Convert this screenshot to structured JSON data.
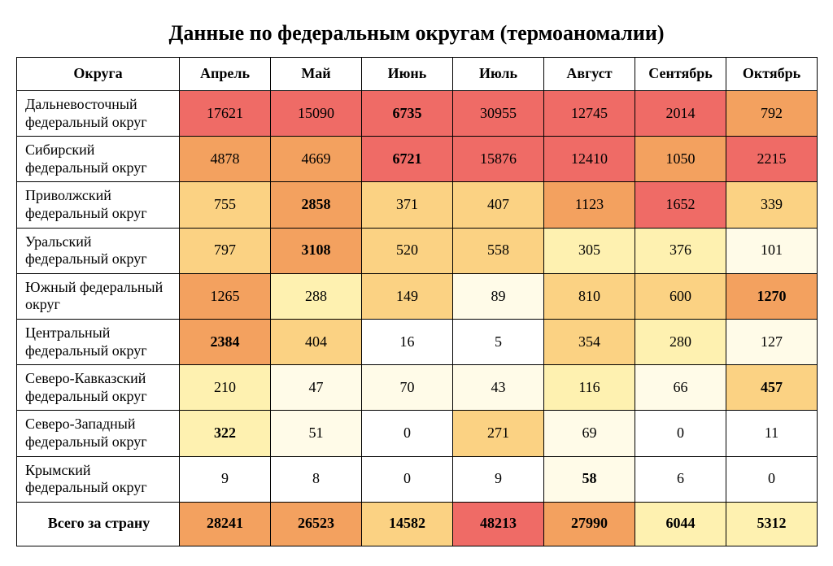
{
  "title": "Данные по федеральным округам (термоаномалии)",
  "header_label": "Округа",
  "months": [
    "Апрель",
    "Май",
    "Июнь",
    "Июль",
    "Август",
    "Сентябрь",
    "Октябрь"
  ],
  "colors": {
    "hot": "#ef6b66",
    "warm": "#f3a15f",
    "mid": "#fbd283",
    "cool": "#fef1b0",
    "cold": "#fffbe8",
    "white": "#ffffff",
    "border": "#000000",
    "text": "#000000"
  },
  "font": {
    "title_size_pt": 20,
    "cell_size_pt": 13
  },
  "rows": [
    {
      "label": "Дальневосточный федеральный округ",
      "cells": [
        {
          "v": 17621,
          "c": "hot"
        },
        {
          "v": 15090,
          "c": "hot"
        },
        {
          "v": 6735,
          "c": "hot",
          "bold": true
        },
        {
          "v": 30955,
          "c": "hot"
        },
        {
          "v": 12745,
          "c": "hot"
        },
        {
          "v": 2014,
          "c": "hot"
        },
        {
          "v": 792,
          "c": "warm"
        }
      ]
    },
    {
      "label": "Сибирский федеральный округ",
      "cells": [
        {
          "v": 4878,
          "c": "warm"
        },
        {
          "v": 4669,
          "c": "warm"
        },
        {
          "v": 6721,
          "c": "hot",
          "bold": true
        },
        {
          "v": 15876,
          "c": "hot"
        },
        {
          "v": 12410,
          "c": "hot"
        },
        {
          "v": 1050,
          "c": "warm"
        },
        {
          "v": 2215,
          "c": "hot"
        }
      ]
    },
    {
      "label": "Приволжский федеральный округ",
      "cells": [
        {
          "v": 755,
          "c": "mid"
        },
        {
          "v": 2858,
          "c": "warm",
          "bold": true
        },
        {
          "v": 371,
          "c": "mid"
        },
        {
          "v": 407,
          "c": "mid"
        },
        {
          "v": 1123,
          "c": "warm"
        },
        {
          "v": 1652,
          "c": "hot"
        },
        {
          "v": 339,
          "c": "mid"
        }
      ]
    },
    {
      "label": "Уральский федеральный округ",
      "cells": [
        {
          "v": 797,
          "c": "mid"
        },
        {
          "v": 3108,
          "c": "warm",
          "bold": true
        },
        {
          "v": 520,
          "c": "mid"
        },
        {
          "v": 558,
          "c": "mid"
        },
        {
          "v": 305,
          "c": "cool"
        },
        {
          "v": 376,
          "c": "cool"
        },
        {
          "v": 101,
          "c": "cold"
        }
      ]
    },
    {
      "label": "Южный федеральный округ",
      "cells": [
        {
          "v": 1265,
          "c": "warm"
        },
        {
          "v": 288,
          "c": "cool"
        },
        {
          "v": 149,
          "c": "mid"
        },
        {
          "v": 89,
          "c": "cold"
        },
        {
          "v": 810,
          "c": "mid"
        },
        {
          "v": 600,
          "c": "mid"
        },
        {
          "v": 1270,
          "c": "warm",
          "bold": true
        }
      ]
    },
    {
      "label": "Центральный федеральный округ",
      "cells": [
        {
          "v": 2384,
          "c": "warm",
          "bold": true
        },
        {
          "v": 404,
          "c": "mid"
        },
        {
          "v": 16,
          "c": "white"
        },
        {
          "v": 5,
          "c": "white"
        },
        {
          "v": 354,
          "c": "mid"
        },
        {
          "v": 280,
          "c": "cool"
        },
        {
          "v": 127,
          "c": "cold"
        }
      ]
    },
    {
      "label": "Северо-Кавказский федеральный округ",
      "cells": [
        {
          "v": 210,
          "c": "cool"
        },
        {
          "v": 47,
          "c": "cold"
        },
        {
          "v": 70,
          "c": "cold"
        },
        {
          "v": 43,
          "c": "cold"
        },
        {
          "v": 116,
          "c": "cool"
        },
        {
          "v": 66,
          "c": "cold"
        },
        {
          "v": 457,
          "c": "mid",
          "bold": true
        }
      ]
    },
    {
      "label": "Северо-Западный федеральный округ",
      "cells": [
        {
          "v": 322,
          "c": "cool",
          "bold": true
        },
        {
          "v": 51,
          "c": "cold"
        },
        {
          "v": 0,
          "c": "white"
        },
        {
          "v": 271,
          "c": "mid"
        },
        {
          "v": 69,
          "c": "cold"
        },
        {
          "v": 0,
          "c": "white"
        },
        {
          "v": 11,
          "c": "white"
        }
      ]
    },
    {
      "label": "Крымский федеральный округ",
      "cells": [
        {
          "v": 9,
          "c": "white"
        },
        {
          "v": 8,
          "c": "white"
        },
        {
          "v": 0,
          "c": "white"
        },
        {
          "v": 9,
          "c": "white"
        },
        {
          "v": 58,
          "c": "cold",
          "bold": true
        },
        {
          "v": 6,
          "c": "white"
        },
        {
          "v": 0,
          "c": "white"
        }
      ]
    }
  ],
  "total": {
    "label": "Всего за страну",
    "cells": [
      {
        "v": 28241,
        "c": "warm"
      },
      {
        "v": 26523,
        "c": "warm"
      },
      {
        "v": 14582,
        "c": "mid"
      },
      {
        "v": 48213,
        "c": "hot"
      },
      {
        "v": 27990,
        "c": "warm"
      },
      {
        "v": 6044,
        "c": "cool"
      },
      {
        "v": 5312,
        "c": "cool"
      }
    ]
  }
}
